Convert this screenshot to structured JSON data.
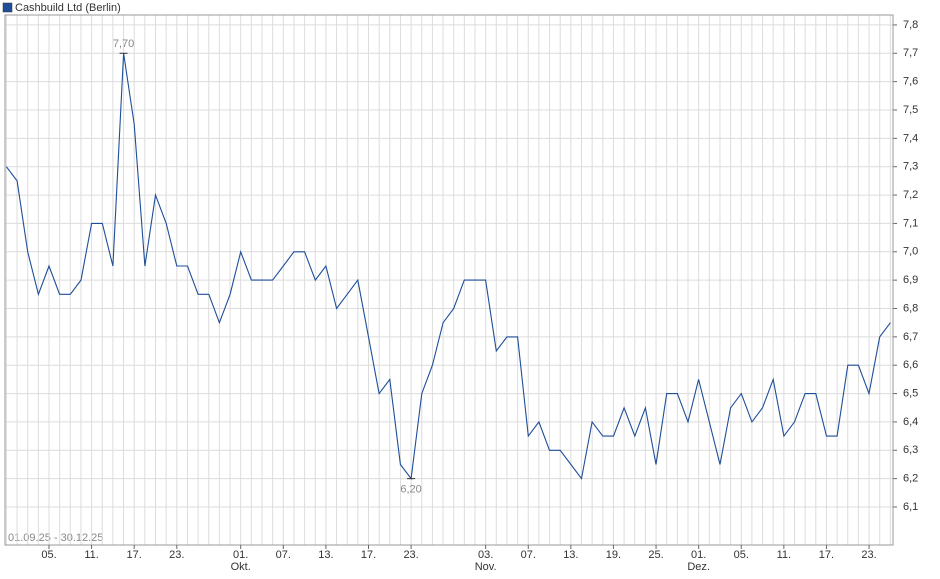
{
  "chart_data": {
    "type": "line",
    "legend": "Cashbuild Ltd (Berlin)",
    "date_range": "01.09.25 - 30.12.25",
    "color": "#1f4e99",
    "categories": [
      null,
      null,
      null,
      null,
      "05.",
      null,
      null,
      null,
      "11.",
      null,
      null,
      null,
      "17.",
      null,
      null,
      null,
      "23.",
      null,
      null,
      null,
      null,
      null,
      "01.",
      null,
      null,
      null,
      "07.",
      null,
      null,
      null,
      "13.",
      null,
      null,
      null,
      "17.",
      null,
      null,
      null,
      "23.",
      null,
      null,
      null,
      null,
      null,
      null,
      "03.",
      null,
      null,
      null,
      "07.",
      null,
      null,
      null,
      "13.",
      null,
      null,
      null,
      "19.",
      null,
      null,
      null,
      "25.",
      null,
      null,
      null,
      "01.",
      null,
      null,
      null,
      "05.",
      null,
      null,
      null,
      "11.",
      null,
      null,
      null,
      "17.",
      null,
      null,
      null,
      "23.",
      null,
      null
    ],
    "months": [
      null,
      null,
      null,
      null,
      null,
      null,
      null,
      null,
      null,
      null,
      null,
      null,
      null,
      null,
      null,
      null,
      null,
      null,
      null,
      null,
      null,
      null,
      "Okt.",
      null,
      null,
      null,
      null,
      null,
      null,
      null,
      null,
      null,
      null,
      null,
      null,
      null,
      null,
      null,
      null,
      null,
      null,
      null,
      null,
      null,
      null,
      "Nov.",
      null,
      null,
      null,
      null,
      null,
      null,
      null,
      null,
      null,
      null,
      null,
      null,
      null,
      null,
      null,
      null,
      null,
      null,
      null,
      "Dez.",
      null,
      null,
      null,
      null,
      null,
      null,
      null,
      null,
      null,
      null,
      null,
      null,
      null,
      null,
      null,
      null,
      null,
      null
    ],
    "values": [
      7.3,
      7.25,
      7.0,
      6.85,
      6.95,
      6.85,
      6.85,
      6.9,
      7.1,
      7.1,
      6.95,
      7.7,
      7.45,
      6.95,
      7.2,
      7.1,
      6.95,
      6.95,
      6.85,
      6.85,
      6.75,
      6.85,
      7.0,
      6.9,
      6.9,
      6.9,
      6.95,
      7.0,
      7.0,
      6.9,
      6.95,
      6.8,
      6.85,
      6.9,
      6.7,
      6.5,
      6.55,
      6.25,
      6.2,
      6.5,
      6.6,
      6.75,
      6.8,
      6.9,
      6.9,
      6.9,
      6.65,
      6.7,
      6.7,
      6.35,
      6.4,
      6.3,
      6.3,
      6.25,
      6.2,
      6.4,
      6.35,
      6.35,
      6.45,
      6.35,
      6.45,
      6.25,
      6.5,
      6.5,
      6.4,
      6.55,
      6.4,
      6.25,
      6.45,
      6.5,
      6.4,
      6.45,
      6.55,
      6.35,
      6.4,
      6.5,
      6.5,
      6.35,
      6.35,
      6.6,
      6.6,
      6.5,
      6.7,
      6.75
    ],
    "annotations": [
      {
        "text": "7,70",
        "value": 7.7
      },
      {
        "text": "6,20",
        "value": 6.2
      }
    ],
    "ylim": [
      5.966,
      7.835
    ],
    "yticks": [
      {
        "value": 6.1,
        "label": "6,1"
      },
      {
        "value": 6.2,
        "label": "6,2"
      },
      {
        "value": 6.3,
        "label": "6,3"
      },
      {
        "value": 6.4,
        "label": "6,4"
      },
      {
        "value": 6.5,
        "label": "6,5"
      },
      {
        "value": 6.6,
        "label": "6,6"
      },
      {
        "value": 6.7,
        "label": "6,7"
      },
      {
        "value": 6.8,
        "label": "6,8"
      },
      {
        "value": 6.9,
        "label": "6,9"
      },
      {
        "value": 7.0,
        "label": "7,0"
      },
      {
        "value": 7.1,
        "label": "7,1"
      },
      {
        "value": 7.2,
        "label": "7,2"
      },
      {
        "value": 7.3,
        "label": "7,3"
      },
      {
        "value": 7.4,
        "label": "7,4"
      },
      {
        "value": 7.5,
        "label": "7,5"
      },
      {
        "value": 7.6,
        "label": "7,6"
      },
      {
        "value": 7.7,
        "label": "7,7"
      },
      {
        "value": 7.8,
        "label": "7,8"
      }
    ],
    "grid": true
  }
}
